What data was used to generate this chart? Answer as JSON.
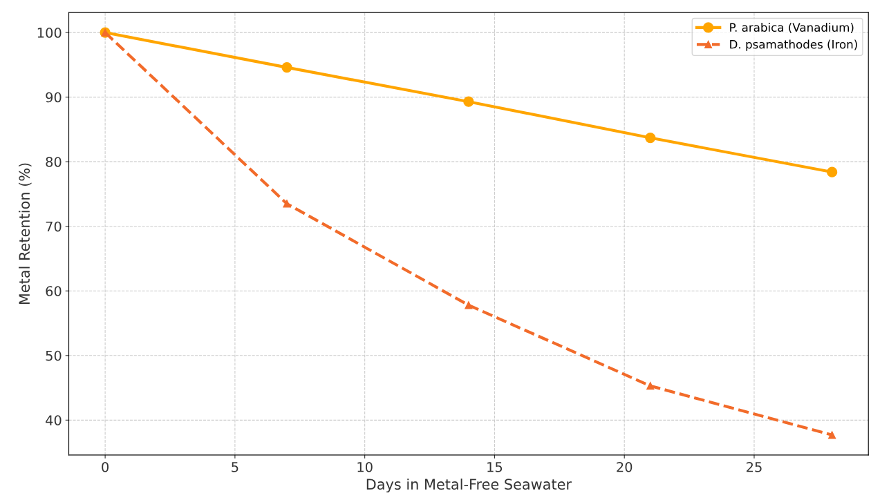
{
  "chart_data": {
    "type": "line",
    "xlabel": "Days in Metal-Free Seawater",
    "ylabel": "Metal Retention (%)",
    "x": [
      0,
      7,
      14,
      21,
      28
    ],
    "series": [
      {
        "name": "P. arabica (Vanadium)",
        "color": "#ffa500",
        "values": [
          100,
          94.6,
          89.3,
          83.7,
          78.4
        ],
        "marker": "circle",
        "line_style": "solid"
      },
      {
        "name": "D. psamathodes (Iron)",
        "color": "#f26b2a",
        "values": [
          100,
          73.5,
          57.8,
          45.3,
          37.7
        ],
        "marker": "triangle",
        "line_style": "dashed"
      }
    ],
    "xlim": [
      -1.4,
      29.4
    ],
    "xticks": [
      0,
      5,
      10,
      15,
      20,
      25
    ],
    "ylim": [
      34.6,
      103.1
    ],
    "yticks": [
      40,
      50,
      60,
      70,
      80,
      90,
      100
    ],
    "grid": true,
    "legend": "top right"
  }
}
